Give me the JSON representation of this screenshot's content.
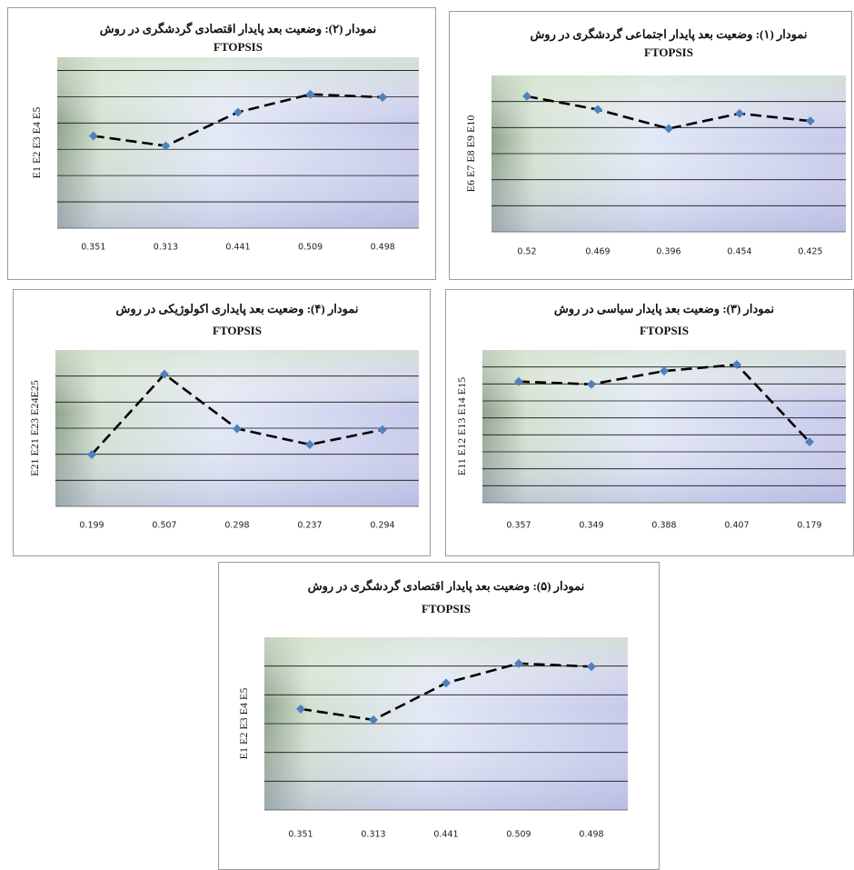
{
  "chart_data": [
    {
      "type": "line",
      "title": "نمودار (۲): وضعیت بعد پایدار اقتصادی گردشگری در روش",
      "subtitle": "FTOPSIS",
      "ylabel": "E1 E2 E3 E4 E5",
      "categories": [
        "0.351",
        "0.313",
        "0.441",
        "0.509",
        "0.498"
      ],
      "values": [
        0.351,
        0.313,
        0.441,
        0.509,
        0.498
      ],
      "ylim": [
        0,
        0.65
      ],
      "ygrid": [
        0.1,
        0.2,
        0.3,
        0.4,
        0.5,
        0.6
      ],
      "color": "#4f81bd",
      "line_color": "#000000"
    },
    {
      "type": "line",
      "title": "نمودار (۱): وضعیت بعد پایدار اجتماعی گردشگری در روش",
      "subtitle": "FTOPSIS",
      "ylabel": "E6 E7 E8 E9 E10",
      "categories": [
        "0.52",
        "0.469",
        "0.396",
        "0.454",
        "0.425"
      ],
      "values": [
        0.52,
        0.469,
        0.396,
        0.454,
        0.425
      ],
      "ylim": [
        0,
        0.6
      ],
      "ygrid": [
        0.1,
        0.2,
        0.3,
        0.4,
        0.5
      ],
      "color": "#4f81bd",
      "line_color": "#000000"
    },
    {
      "type": "line",
      "title": "نمودار (۴): وضعیت بعد پایداری اکولوژیکی در روش",
      "subtitle": "FTOPSIS",
      "ylabel": "E21 E21 E23 E24E25",
      "categories": [
        "0.199",
        "0.507",
        "0.298",
        "0.237",
        "0.294"
      ],
      "values": [
        0.199,
        0.507,
        0.298,
        0.237,
        0.294
      ],
      "ylim": [
        0,
        0.6
      ],
      "ygrid": [
        0.1,
        0.2,
        0.3,
        0.4,
        0.5
      ],
      "color": "#4f81bd",
      "line_color": "#000000"
    },
    {
      "type": "line",
      "title": "نمودار (۳): وضعیت بعد پایدار سیاسی در روش",
      "subtitle": "FTOPSIS",
      "ylabel": "E11 E12 E13 E14 E15",
      "categories": [
        "0.357",
        "0.349",
        "0.388",
        "0.407",
        "0.179"
      ],
      "values": [
        0.357,
        0.349,
        0.388,
        0.407,
        0.179
      ],
      "ylim": [
        0,
        0.45
      ],
      "ygrid": [
        0.05,
        0.1,
        0.15,
        0.2,
        0.25,
        0.3,
        0.35,
        0.4
      ],
      "color": "#4f81bd",
      "line_color": "#000000"
    },
    {
      "type": "line",
      "title": "نمودار (۵): وضعیت بعد پایدار اقتصادی گردشگری در روش",
      "subtitle": "FTOPSIS",
      "ylabel": "E1 E2 E3 E4 E5",
      "categories": [
        "0.351",
        "0.313",
        "0.441",
        "0.509",
        "0.498"
      ],
      "values": [
        0.351,
        0.313,
        0.441,
        0.509,
        0.498
      ],
      "ylim": [
        0,
        0.6
      ],
      "ygrid": [
        0.1,
        0.2,
        0.3,
        0.4,
        0.5
      ],
      "color": "#4f81bd",
      "line_color": "#000000"
    }
  ]
}
